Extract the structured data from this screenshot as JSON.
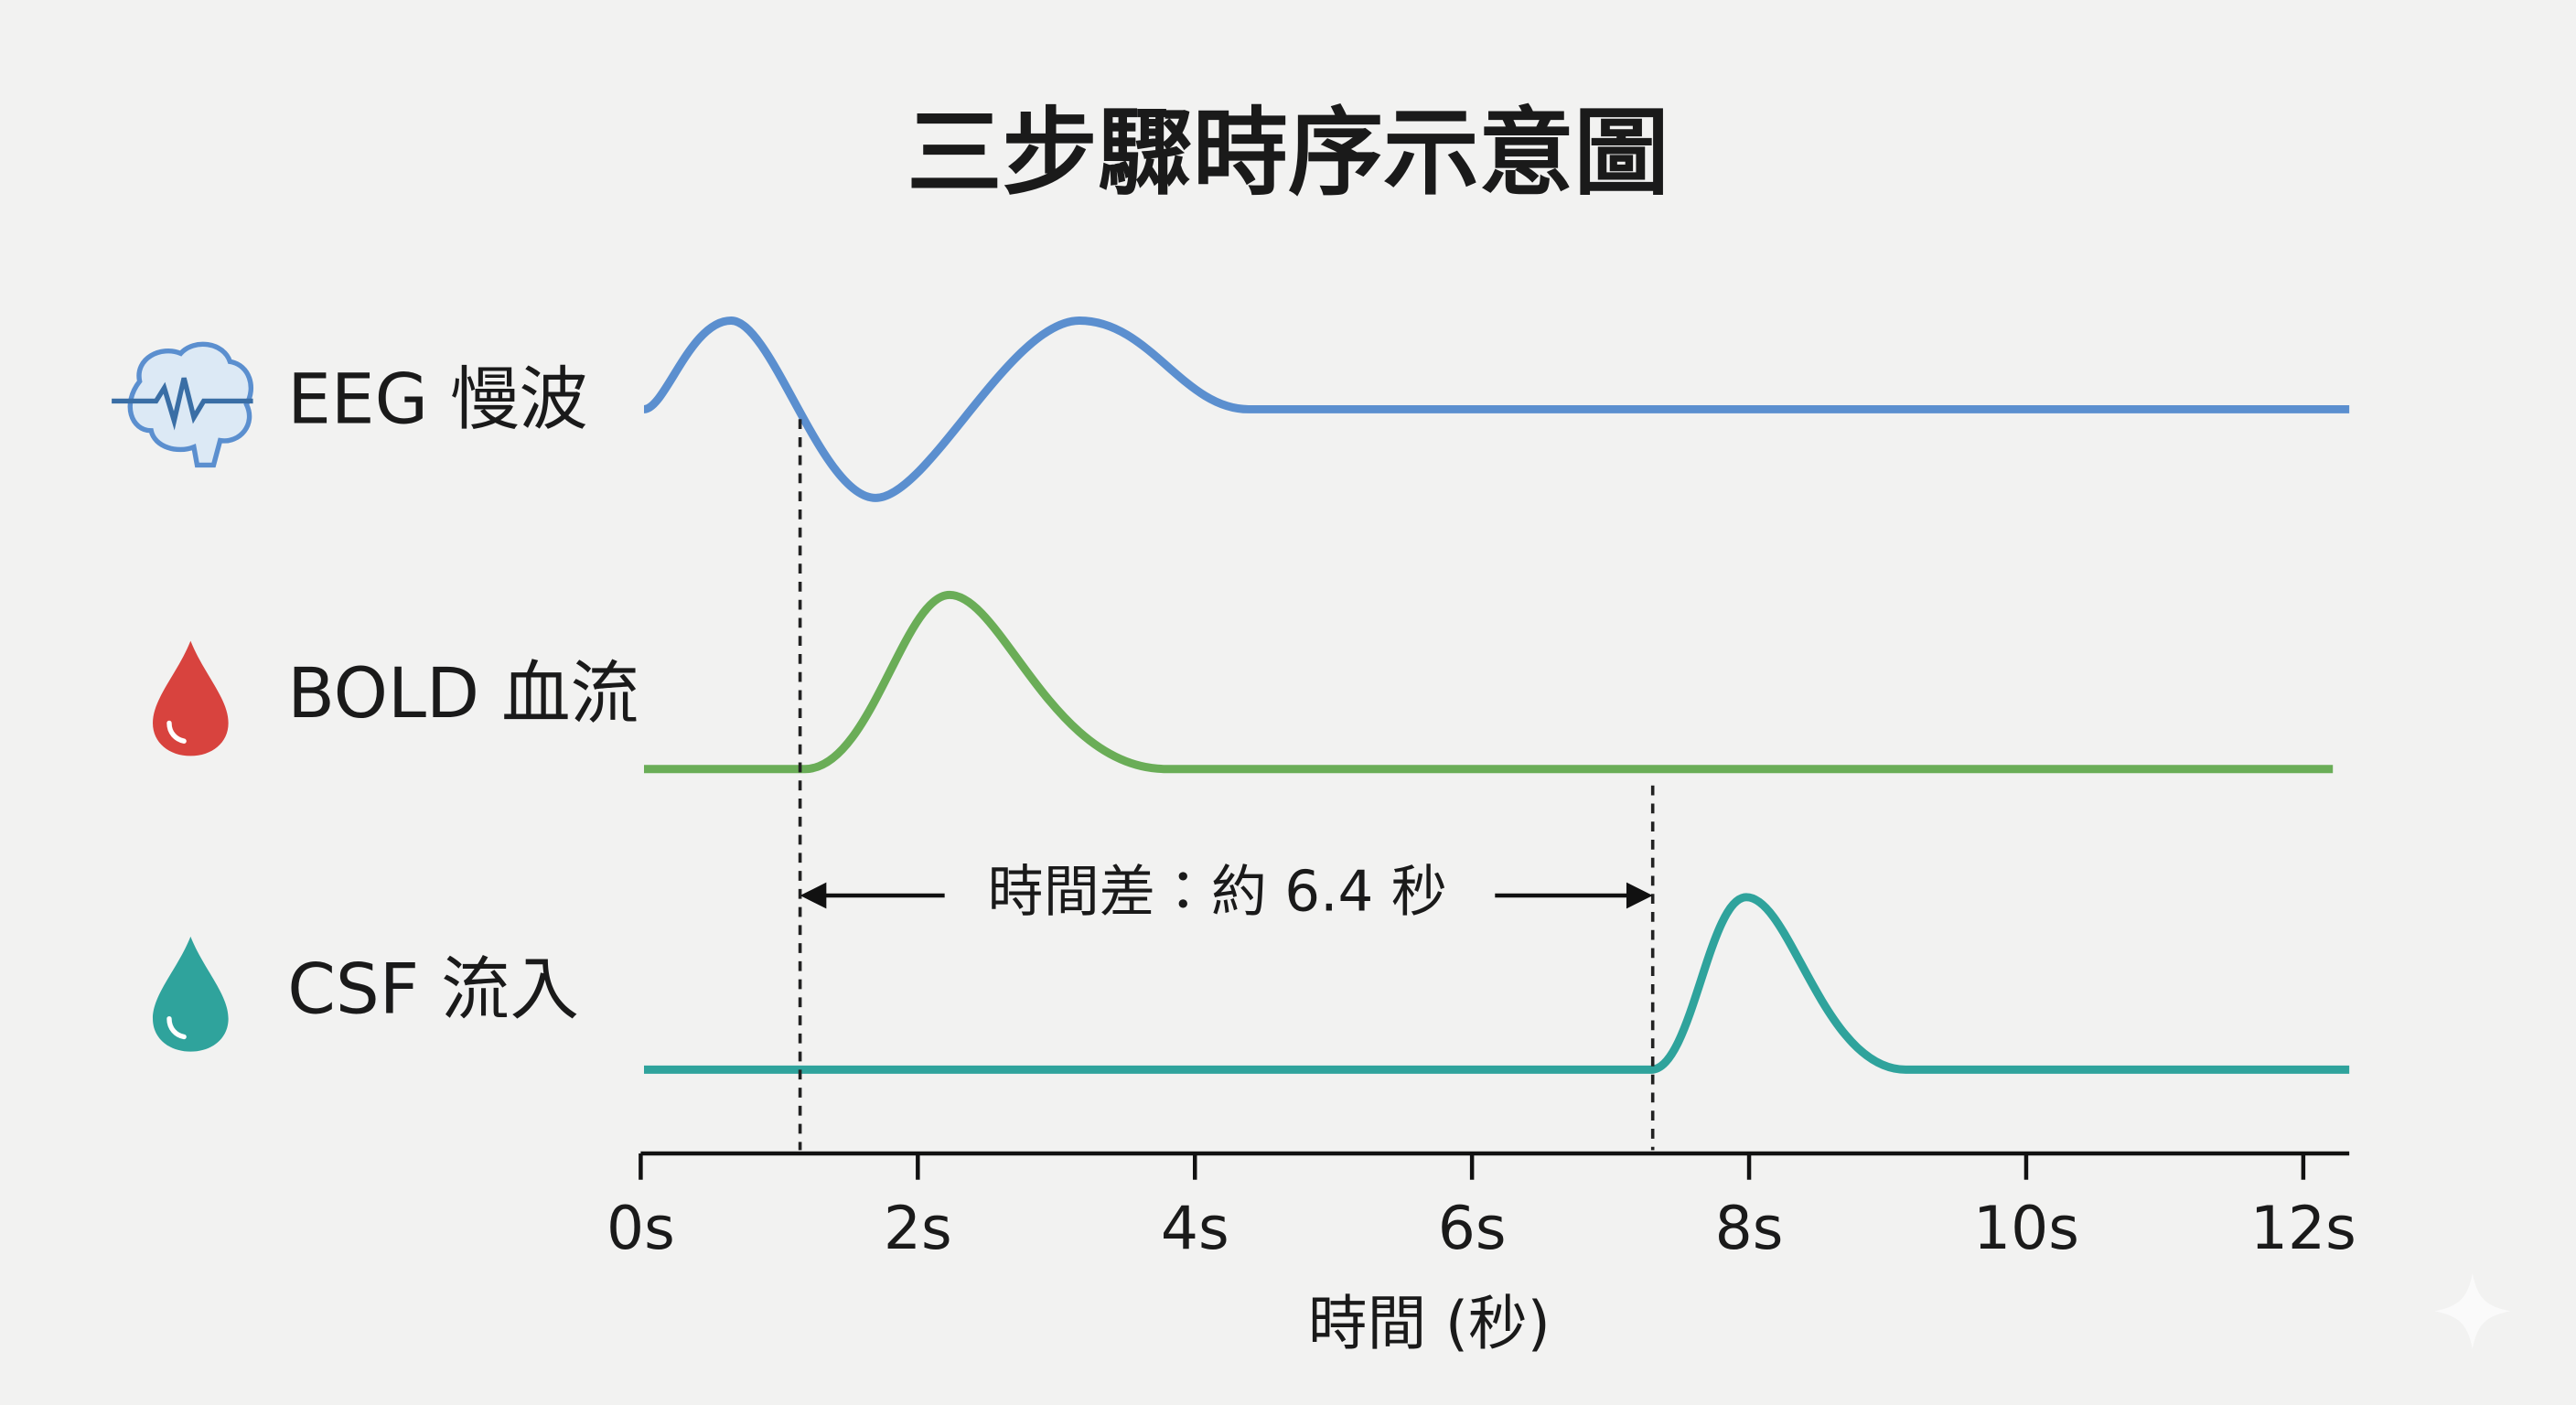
{
  "title": "三步驟時序示意圖",
  "rows": [
    {
      "label": "EEG 慢波",
      "color": "#5b8fcf"
    },
    {
      "label": "BOLD 血流",
      "color": "#6aad57"
    },
    {
      "label": "CSF 流入",
      "color": "#2fa39c"
    }
  ],
  "annotation": "時間差：約 6.4 秒",
  "axis": {
    "ticks": [
      "0s",
      "2s",
      "4s",
      "6s",
      "8s",
      "10s",
      "12s"
    ],
    "title": "時間 (秒)"
  }
}
